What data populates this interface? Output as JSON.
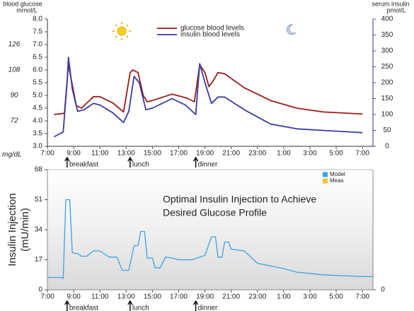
{
  "chart_data": [
    {
      "type": "line",
      "ylabel": [
        "blood glucose",
        "mmol/L"
      ],
      "y2label": [
        "serum insulin",
        "pmol/L"
      ],
      "mgdl_label": "mg/dL",
      "mgdl_ticks": [
        {
          "value": 4,
          "label": "72"
        },
        {
          "value": 5,
          "label": "90"
        },
        {
          "value": 6,
          "label": "108"
        },
        {
          "value": 7,
          "label": "126"
        }
      ],
      "xlim": [
        7,
        31.8
      ],
      "xticks": [
        {
          "value": 7,
          "label": "7:00"
        },
        {
          "value": 9,
          "label": "9:00"
        },
        {
          "value": 11,
          "label": "11:00"
        },
        {
          "value": 13,
          "label": "13:00"
        },
        {
          "value": 15,
          "label": "15:00"
        },
        {
          "value": 17,
          "label": "17:00"
        },
        {
          "value": 19,
          "label": "19:00"
        },
        {
          "value": 21,
          "label": "21:00"
        },
        {
          "value": 23,
          "label": "23:00"
        },
        {
          "value": 25,
          "label": "1:00"
        },
        {
          "value": 27,
          "label": "3:00"
        },
        {
          "value": 29,
          "label": "5:00"
        },
        {
          "value": 31,
          "label": "7:00"
        }
      ],
      "ylim": [
        3,
        8
      ],
      "yticks": [
        {
          "value": 3,
          "label": "3.0"
        },
        {
          "value": 3.5,
          "label": "3.5"
        },
        {
          "value": 4,
          "label": "4.0"
        },
        {
          "value": 4.5,
          "label": "4.5"
        },
        {
          "value": 5,
          "label": "5.0"
        },
        {
          "value": 5.5,
          "label": "5.5"
        },
        {
          "value": 6,
          "label": "6.0"
        },
        {
          "value": 6.5,
          "label": "6.5"
        },
        {
          "value": 7,
          "label": "7.0"
        },
        {
          "value": 7.5,
          "label": "7.5"
        },
        {
          "value": 8,
          "label": "8.0"
        }
      ],
      "y2lim": [
        0,
        400
      ],
      "y2ticks": [
        0,
        50,
        100,
        150,
        200,
        250,
        300,
        350,
        400
      ],
      "annotations": [
        {
          "text": "breakfast",
          "x": 8.5
        },
        {
          "text": "lunch",
          "x": 13.3
        },
        {
          "text": "dinner",
          "x": 18.3
        }
      ],
      "series": [
        {
          "name": "glucose blood levels",
          "color": "#9b1c1c",
          "axis": "y",
          "x": [
            7.5,
            8.3,
            8.6,
            9.2,
            9.6,
            10.5,
            11,
            12,
            12.8,
            13.3,
            13.5,
            13.9,
            14.3,
            14.6,
            15,
            16.5,
            17.6,
            18.2,
            18.6,
            19,
            19.3,
            19.6,
            20,
            20.5,
            22,
            24,
            26,
            28,
            31
          ],
          "values": [
            4.25,
            4.3,
            6.2,
            4.6,
            4.5,
            4.95,
            4.95,
            4.7,
            4.35,
            5.9,
            6.0,
            5.9,
            5.0,
            4.75,
            4.8,
            5.05,
            4.9,
            4.75,
            6.2,
            5.9,
            5.35,
            5.55,
            5.9,
            5.85,
            5.3,
            4.8,
            4.5,
            4.35,
            4.27
          ]
        },
        {
          "name": "insulin blood levels",
          "color": "#3a3aa0",
          "axis": "y2",
          "x": [
            7.5,
            8.2,
            8.5,
            8.6,
            8.9,
            9.3,
            9.8,
            10.5,
            11,
            12,
            12.8,
            13.2,
            13.6,
            14,
            14.5,
            15,
            16.5,
            17.5,
            18.3,
            18.6,
            19,
            19.5,
            20,
            20.5,
            22,
            24,
            26,
            28,
            31
          ],
          "values": [
            30,
            45,
            200,
            280,
            180,
            110,
            115,
            135,
            130,
            105,
            75,
            110,
            220,
            200,
            115,
            120,
            150,
            130,
            100,
            260,
            200,
            135,
            155,
            155,
            115,
            70,
            55,
            50,
            43
          ]
        }
      ]
    },
    {
      "type": "line",
      "ylabel": [
        "Insulin Injection",
        "(mU/min)"
      ],
      "annotation": [
        "Optimal Insulin Injection to Achieve",
        "Desired Glucose Profile"
      ],
      "xlim": [
        7,
        31.8
      ],
      "xticks": [
        {
          "value": 7,
          "label": "7:00"
        },
        {
          "value": 9,
          "label": "9:00"
        },
        {
          "value": 11,
          "label": "11:00"
        },
        {
          "value": 13,
          "label": "13:00"
        },
        {
          "value": 15,
          "label": "15:00"
        },
        {
          "value": 17,
          "label": "17:00"
        },
        {
          "value": 19,
          "label": "19:00"
        },
        {
          "value": 21,
          "label": "21:00"
        },
        {
          "value": 23,
          "label": "23:00"
        },
        {
          "value": 25,
          "label": "1:00"
        },
        {
          "value": 27,
          "label": "3:00"
        },
        {
          "value": 29,
          "label": "5:00"
        },
        {
          "value": 31,
          "label": "7:00"
        }
      ],
      "ylim": [
        0,
        68
      ],
      "yticks": [
        0,
        17,
        34,
        51,
        68
      ],
      "y2lim": [
        0,
        68
      ],
      "y2ticks": [
        0
      ],
      "annotations": [
        {
          "text": "breakfast",
          "x": 8.5
        },
        {
          "text": "lunch",
          "x": 13.3
        },
        {
          "text": "dinner",
          "x": 18.3
        }
      ],
      "series": [
        {
          "name": "Model",
          "color": "#3aa3e3",
          "x": [
            7,
            8,
            8.2,
            8.4,
            8.7,
            8.9,
            9.3,
            9.6,
            10,
            10.5,
            11,
            11.7,
            12.3,
            12.7,
            13.2,
            13.6,
            13.9,
            14.1,
            14.4,
            14.6,
            15,
            15.2,
            15.6,
            16,
            16.5,
            17,
            18,
            19,
            19.5,
            19.8,
            20,
            20.3,
            20.5,
            20.8,
            21,
            22,
            23,
            25,
            26,
            28,
            31,
            31.8
          ],
          "values": [
            7,
            7,
            6.5,
            51,
            51,
            21,
            20.5,
            19,
            19,
            22,
            22,
            18.5,
            18.5,
            11,
            11,
            25,
            25,
            33,
            33,
            18,
            18,
            12.5,
            12.5,
            18.5,
            18,
            17,
            17,
            19.5,
            30,
            30,
            18.5,
            18.5,
            27,
            27,
            23,
            22,
            15,
            12,
            10,
            8.5,
            7.5,
            7.5
          ]
        },
        {
          "name": "Meas",
          "color": "#f2c12e",
          "x": [
            7,
            8,
            8.2,
            8.4,
            8.7,
            8.9,
            9.3,
            9.6,
            10,
            10.5,
            11,
            11.7,
            12.3,
            12.7,
            13.2,
            13.6,
            13.9,
            14.1,
            14.4,
            14.6,
            15,
            15.2,
            15.6,
            16,
            16.5,
            17,
            18,
            19,
            19.5,
            19.8,
            20,
            20.3,
            20.5,
            20.8,
            21,
            22,
            23,
            25,
            26,
            28,
            31,
            31.8
          ],
          "values": [
            null,
            null,
            null,
            null,
            null,
            null,
            null,
            null,
            null,
            null,
            null,
            null,
            null,
            null,
            null,
            null,
            null,
            null,
            null,
            null,
            null,
            null,
            null,
            null,
            null,
            null,
            null,
            null,
            null,
            null,
            null,
            null,
            null,
            null,
            null,
            null,
            null,
            null,
            null,
            null,
            null,
            null
          ]
        }
      ]
    }
  ]
}
